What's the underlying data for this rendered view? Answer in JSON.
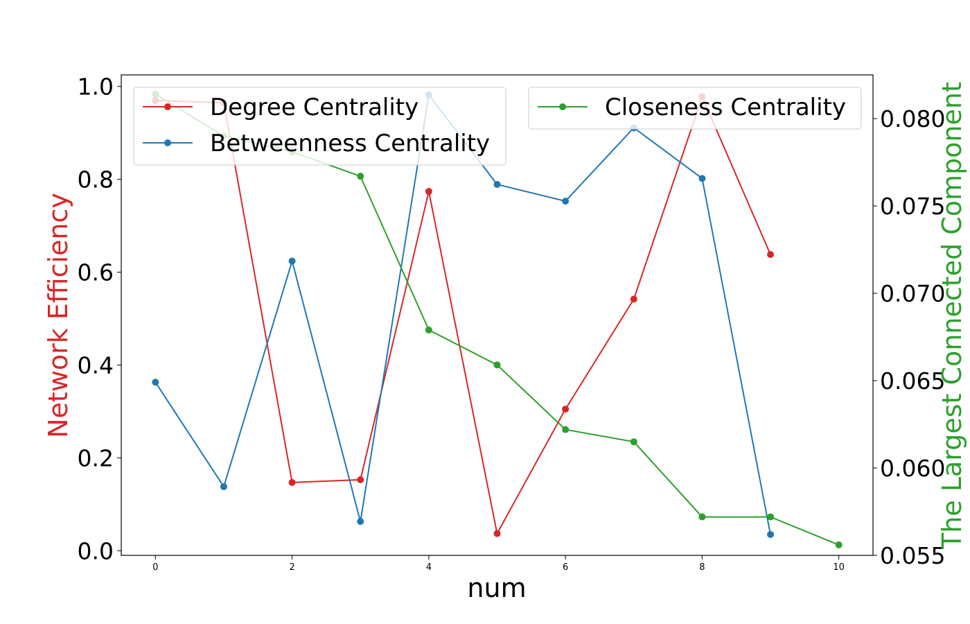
{
  "chart_data": {
    "type": "line",
    "xlabel": "num",
    "ylabel_left": "Network Efficiency",
    "ylabel_right": "The Largest Connected Component",
    "xlim": [
      -0.5,
      10.5
    ],
    "ylim_left": [
      -0.01,
      1.025
    ],
    "ylim_right": [
      0.055,
      0.0825
    ],
    "x_ticks": [
      0,
      2,
      4,
      6,
      8,
      10
    ],
    "y_ticks_left": [
      "0.0",
      "0.2",
      "0.4",
      "0.6",
      "0.8",
      "1.0"
    ],
    "y_ticks_right": [
      "0.055",
      "0.060",
      "0.065",
      "0.070",
      "0.075",
      "0.080"
    ],
    "grid": false,
    "colors": {
      "left_axis_label": "#d62728",
      "right_axis_label": "#2ca02c"
    },
    "series": [
      {
        "name": "Degree Centrality",
        "axis": "left",
        "color": "#d62728",
        "x": [
          0,
          1,
          2,
          3,
          4,
          5,
          6,
          7,
          8,
          9
        ],
        "y": [
          0.97,
          0.965,
          0.147,
          0.153,
          0.774,
          0.037,
          0.305,
          0.542,
          0.978,
          0.638
        ]
      },
      {
        "name": "Betweenness Centrality",
        "axis": "left",
        "color": "#1f77b4",
        "x": [
          0,
          1,
          2,
          3,
          4,
          5,
          6,
          7,
          8,
          9
        ],
        "y": [
          0.363,
          0.138,
          0.624,
          0.063,
          0.982,
          0.789,
          0.753,
          0.911,
          0.802,
          0.035
        ]
      },
      {
        "name": "Closeness Centrality",
        "axis": "right",
        "color": "#2ca02c",
        "x": [
          0,
          1,
          2,
          3,
          4,
          5,
          6,
          7,
          8,
          9,
          10
        ],
        "y": [
          0.0814,
          0.079,
          0.0781,
          0.0767,
          0.0679,
          0.0659,
          0.0622,
          0.0615,
          0.0572,
          0.0572,
          0.0556
        ]
      }
    ],
    "legends": [
      {
        "placement": "upper-left",
        "series": [
          "Degree Centrality",
          "Betweenness Centrality"
        ]
      },
      {
        "placement": "upper-right",
        "series": [
          "Closeness Centrality"
        ]
      }
    ]
  }
}
